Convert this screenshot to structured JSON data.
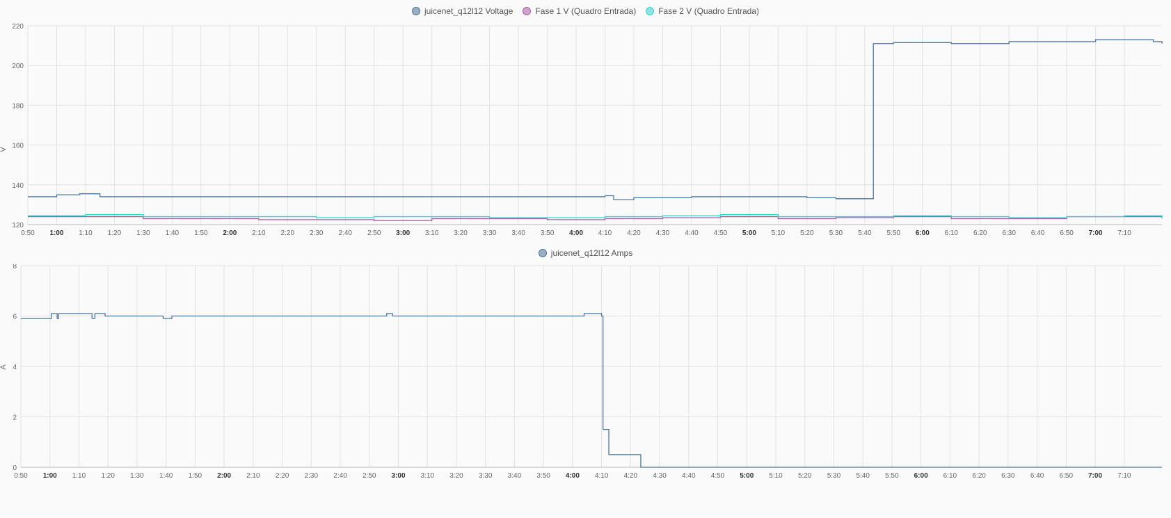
{
  "chart_data": [
    {
      "type": "line",
      "step": true,
      "ylabel": "V",
      "ylim": [
        120,
        220
      ],
      "yticks": [
        120,
        140,
        160,
        180,
        200,
        220
      ],
      "grid": true,
      "legend_position": "top",
      "x_ticks": [
        "0:50",
        "1:00",
        "1:10",
        "1:20",
        "1:30",
        "1:40",
        "1:50",
        "2:00",
        "2:10",
        "2:20",
        "2:30",
        "2:40",
        "2:50",
        "3:00",
        "3:10",
        "3:20",
        "3:30",
        "3:40",
        "3:50",
        "4:00",
        "4:10",
        "4:20",
        "4:30",
        "4:40",
        "4:50",
        "5:00",
        "5:10",
        "5:20",
        "5:30",
        "5:40",
        "5:50",
        "6:00",
        "6:10",
        "6:20",
        "6:30",
        "6:40",
        "6:50",
        "7:00",
        "7:10"
      ],
      "x_ticks_bold": [
        "1:00",
        "2:00",
        "3:00",
        "4:00",
        "5:00",
        "6:00",
        "7:00"
      ],
      "x_range_minutes": [
        50,
        443
      ],
      "series": [
        {
          "name": "juicenet_q12l12 Voltage",
          "color": "#4a76a0",
          "fill": "#9aafc4",
          "points": [
            [
              50,
              134
            ],
            [
              60,
              135
            ],
            [
              68,
              135.5
            ],
            [
              75,
              134
            ],
            [
              90,
              134
            ],
            [
              120,
              134
            ],
            [
              150,
              134
            ],
            [
              180,
              134
            ],
            [
              210,
              134
            ],
            [
              240,
              134
            ],
            [
              250,
              134.5
            ],
            [
              253,
              132.5
            ],
            [
              260,
              133.5
            ],
            [
              280,
              134
            ],
            [
              300,
              134
            ],
            [
              320,
              133.5
            ],
            [
              330,
              133
            ],
            [
              341,
              133
            ],
            [
              343,
              211
            ],
            [
              350,
              211.5
            ],
            [
              370,
              211
            ],
            [
              390,
              212
            ],
            [
              420,
              213
            ],
            [
              440,
              212
            ],
            [
              443,
              211
            ]
          ]
        },
        {
          "name": "Fase 1 V (Quadro Entrada)",
          "color": "#b05aa6",
          "fill": "#cfa3cb",
          "points": [
            [
              50,
              124
            ],
            [
              70,
              124
            ],
            [
              90,
              123
            ],
            [
              110,
              123
            ],
            [
              130,
              122.5
            ],
            [
              150,
              122.5
            ],
            [
              170,
              122
            ],
            [
              190,
              123
            ],
            [
              210,
              123
            ],
            [
              230,
              122.5
            ],
            [
              250,
              123
            ],
            [
              270,
              123.5
            ],
            [
              290,
              124
            ],
            [
              310,
              123
            ],
            [
              330,
              123.5
            ],
            [
              350,
              124
            ],
            [
              370,
              123
            ],
            [
              390,
              123
            ],
            [
              410,
              124
            ],
            [
              430,
              124
            ],
            [
              443,
              123.5
            ]
          ]
        },
        {
          "name": "Fase 2 V (Quadro Entrada)",
          "color": "#2fd6d6",
          "fill": "#8ee3e3",
          "points": [
            [
              50,
              124.5
            ],
            [
              70,
              125
            ],
            [
              90,
              124
            ],
            [
              110,
              124
            ],
            [
              130,
              124
            ],
            [
              150,
              123.5
            ],
            [
              170,
              124
            ],
            [
              190,
              124
            ],
            [
              210,
              123.5
            ],
            [
              230,
              123.5
            ],
            [
              250,
              124
            ],
            [
              270,
              124.5
            ],
            [
              290,
              125
            ],
            [
              310,
              124
            ],
            [
              330,
              124
            ],
            [
              350,
              124.5
            ],
            [
              370,
              124
            ],
            [
              390,
              123.5
            ],
            [
              410,
              124
            ],
            [
              430,
              124.5
            ],
            [
              443,
              123
            ]
          ]
        }
      ]
    },
    {
      "type": "line",
      "step": true,
      "ylabel": "A",
      "ylim": [
        0,
        8
      ],
      "yticks": [
        0,
        2,
        4,
        6,
        8
      ],
      "grid": true,
      "legend_position": "top",
      "x_ticks": [
        "0:50",
        "1:00",
        "1:10",
        "1:20",
        "1:30",
        "1:40",
        "1:50",
        "2:00",
        "2:10",
        "2:20",
        "2:30",
        "2:40",
        "2:50",
        "3:00",
        "3:10",
        "3:20",
        "3:30",
        "3:40",
        "3:50",
        "4:00",
        "4:10",
        "4:20",
        "4:30",
        "4:40",
        "4:50",
        "5:00",
        "5:10",
        "5:20",
        "5:30",
        "5:40",
        "5:50",
        "6:00",
        "6:10",
        "6:20",
        "6:30",
        "6:40",
        "6:50",
        "7:00",
        "7:10"
      ],
      "x_ticks_bold": [
        "1:00",
        "2:00",
        "3:00",
        "4:00",
        "5:00",
        "6:00",
        "7:00"
      ],
      "x_range_minutes": [
        50,
        443
      ],
      "series": [
        {
          "name": "juicenet_q12l12 Amps",
          "color": "#4a76a0",
          "fill": "#9aafc4",
          "points": [
            [
              50,
              5.9
            ],
            [
              60,
              5.9
            ],
            [
              60.5,
              6.1
            ],
            [
              62,
              6.1
            ],
            [
              62.5,
              5.9
            ],
            [
              63,
              6.1
            ],
            [
              74,
              6.1
            ],
            [
              74.5,
              5.9
            ],
            [
              75.5,
              6.1
            ],
            [
              78,
              6.1
            ],
            [
              79,
              6.0
            ],
            [
              98,
              6.0
            ],
            [
              99,
              5.9
            ],
            [
              102,
              6.0
            ],
            [
              125,
              6.0
            ],
            [
              140,
              6.0
            ],
            [
              175,
              6.0
            ],
            [
              176,
              6.1
            ],
            [
              178,
              6.0
            ],
            [
              240,
              6.0
            ],
            [
              244,
              6.1
            ],
            [
              249,
              6.1
            ],
            [
              250,
              6.0
            ],
            [
              250.5,
              1.5
            ],
            [
              252,
              1.5
            ],
            [
              252.5,
              0.5
            ],
            [
              263,
              0.5
            ],
            [
              263.5,
              0
            ],
            [
              443,
              0
            ]
          ]
        }
      ]
    }
  ]
}
